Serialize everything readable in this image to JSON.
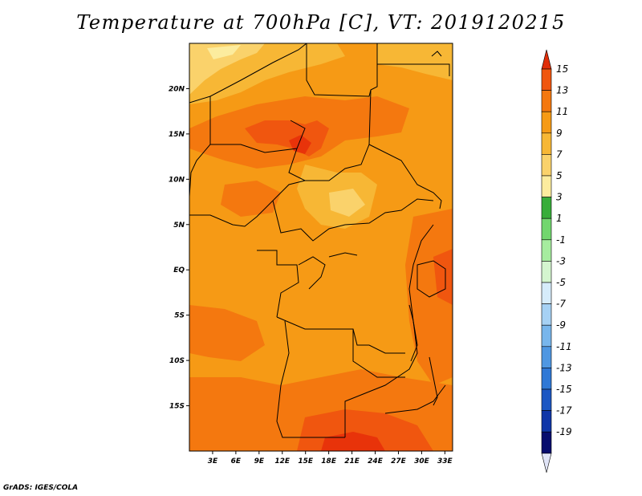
{
  "title": "Temperature at 700hPa [C], VT: 2019120215",
  "credit": "GrADS: IGES/COLA",
  "map": {
    "variable": "Temperature at 700hPa",
    "units": "C",
    "valid_time": "2019120215",
    "lon_range": [
      0,
      34
    ],
    "lat_range": [
      -20,
      25
    ],
    "lon_ticks": [
      "3E",
      "6E",
      "9E",
      "12E",
      "15E",
      "18E",
      "21E",
      "24E",
      "27E",
      "30E",
      "33E"
    ],
    "lat_ticks": [
      "20N",
      "15N",
      "10N",
      "5N",
      "EQ",
      "5S",
      "10S",
      "15S"
    ],
    "dominant_range": "9 to 13 C",
    "warmest_areas": [
      "Niger/Chad border near 15N",
      "southern Angola/Zambia near 20S"
    ],
    "coolest_areas": [
      "northwest corner near 22N",
      "Central African Republic near 7N"
    ]
  },
  "colorbar": {
    "labels": [
      "15",
      "13",
      "11",
      "9",
      "7",
      "5",
      "3",
      "1",
      "-1",
      "-3",
      "-5",
      "-7",
      "-9",
      "-11",
      "-13",
      "-15",
      "-17",
      "-19"
    ],
    "colors": [
      "#e8330a",
      "#f0560f",
      "#f4780f",
      "#f69a15",
      "#f7b735",
      "#fad26b",
      "#fcec9e",
      "#38ad3a",
      "#72d66e",
      "#a6ec9f",
      "#d4f5cf",
      "#d6ecfb",
      "#a6d1f4",
      "#78b6ec",
      "#4f97e2",
      "#2f78d6",
      "#1c57c3",
      "#0f36a8",
      "#070d6e"
    ],
    "top_arrow_color": "#e02e0a",
    "bottom_arrow_color": "#e0e4f7"
  }
}
